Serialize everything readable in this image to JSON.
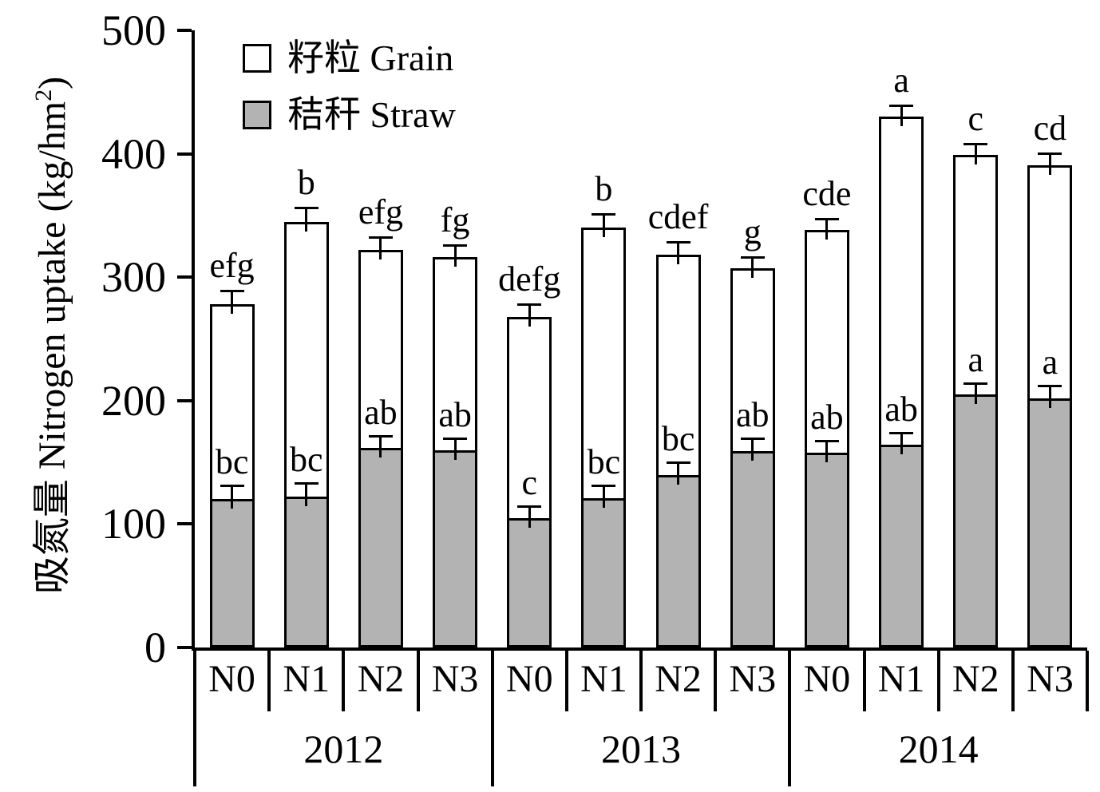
{
  "chart_data": {
    "type": "bar",
    "subtype": "stacked",
    "title": "",
    "ylabel": {
      "prefix": "吸氮量 Nitrogen uptake (kg/hm",
      "sup": "2",
      "suffix": ")"
    },
    "xlabel": "",
    "ylim": [
      0,
      500
    ],
    "yticks": [
      0,
      100,
      200,
      300,
      400,
      500
    ],
    "grid": false,
    "legend_position": "top-left-inside",
    "colors": {
      "grain": "#ffffff",
      "straw": "#b3b3b3",
      "axis": "#000000"
    },
    "legend": [
      {
        "key": "grain",
        "label": "籽粒 Grain"
      },
      {
        "key": "straw",
        "label": "秸秆 Straw"
      }
    ],
    "groups": [
      {
        "year": "2012",
        "bars": [
          {
            "n": "N0",
            "straw": 120,
            "total": 278,
            "err_straw": 10,
            "err_total": 10,
            "straw_label": "bc",
            "total_label": "efg"
          },
          {
            "n": "N1",
            "straw": 122,
            "total": 345,
            "err_straw": 10,
            "err_total": 10,
            "straw_label": "bc",
            "total_label": "b"
          },
          {
            "n": "N2",
            "straw": 162,
            "total": 322,
            "err_straw": 8,
            "err_total": 9,
            "straw_label": "ab",
            "total_label": "efg"
          },
          {
            "n": "N3",
            "straw": 160,
            "total": 316,
            "err_straw": 8,
            "err_total": 9,
            "straw_label": "ab",
            "total_label": "fg"
          }
        ]
      },
      {
        "year": "2013",
        "bars": [
          {
            "n": "N0",
            "straw": 105,
            "total": 268,
            "err_straw": 8,
            "err_total": 9,
            "straw_label": "c",
            "total_label": "defg"
          },
          {
            "n": "N1",
            "straw": 121,
            "total": 340,
            "err_straw": 9,
            "err_total": 10,
            "straw_label": "bc",
            "total_label": "b"
          },
          {
            "n": "N2",
            "straw": 140,
            "total": 318,
            "err_straw": 9,
            "err_total": 9,
            "straw_label": "bc",
            "total_label": "cdef"
          },
          {
            "n": "N3",
            "straw": 159,
            "total": 307,
            "err_straw": 9,
            "err_total": 8,
            "straw_label": "ab",
            "total_label": "g"
          }
        ]
      },
      {
        "year": "2014",
        "bars": [
          {
            "n": "N0",
            "straw": 158,
            "total": 338,
            "err_straw": 8,
            "err_total": 8,
            "straw_label": "ab",
            "total_label": "cde"
          },
          {
            "n": "N1",
            "straw": 164,
            "total": 430,
            "err_straw": 9,
            "err_total": 8,
            "straw_label": "ab",
            "total_label": "a"
          },
          {
            "n": "N2",
            "straw": 205,
            "total": 399,
            "err_straw": 8,
            "err_total": 8,
            "straw_label": "a",
            "total_label": "c"
          },
          {
            "n": "N3",
            "straw": 202,
            "total": 391,
            "err_straw": 9,
            "err_total": 8,
            "straw_label": "a",
            "total_label": "cd"
          }
        ]
      }
    ]
  }
}
